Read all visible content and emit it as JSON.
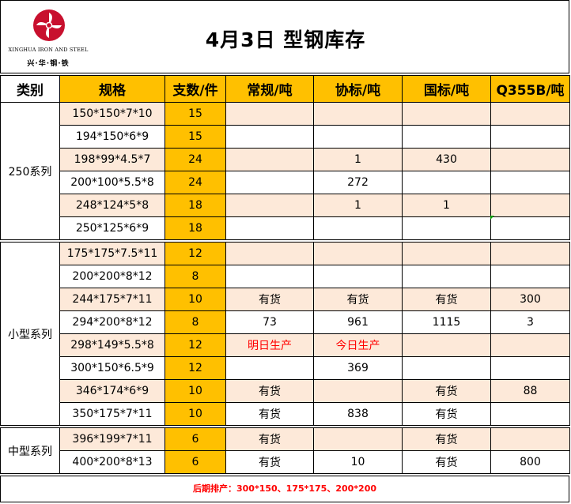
{
  "header": {
    "title": "4月3日  型钢库存",
    "logo_en": "XINGHUA IRON AND STEEL",
    "logo_cn": "兴·华·钢·铁",
    "logo_color": "#c8102e"
  },
  "columns": [
    "类别",
    "规格",
    "支数/件",
    "常规/吨",
    "协标/吨",
    "国标/吨",
    "Q355B/吨"
  ],
  "groups": [
    {
      "category": "250系列",
      "rows": [
        {
          "spec": "150*150*7*10",
          "count": "15",
          "regular": "",
          "assoc": "",
          "national": "",
          "q355b": ""
        },
        {
          "spec": "194*150*6*9",
          "count": "15",
          "regular": "",
          "assoc": "",
          "national": "",
          "q355b": ""
        },
        {
          "spec": "198*99*4.5*7",
          "count": "24",
          "regular": "",
          "assoc": "1",
          "national": "430",
          "q355b": ""
        },
        {
          "spec": "200*100*5.5*8",
          "count": "24",
          "regular": "",
          "assoc": "272",
          "national": "",
          "q355b": ""
        },
        {
          "spec": "248*124*5*8",
          "count": "18",
          "regular": "",
          "assoc": "1",
          "national": "1",
          "q355b": ""
        },
        {
          "spec": "250*125*6*9",
          "count": "18",
          "regular": "",
          "assoc": "",
          "national": "",
          "q355b": ""
        }
      ]
    },
    {
      "category": "小型系列",
      "rows": [
        {
          "spec": "175*175*7.5*11",
          "count": "12",
          "regular": "",
          "assoc": "",
          "national": "",
          "q355b": ""
        },
        {
          "spec": "200*200*8*12",
          "count": "8",
          "regular": "",
          "assoc": "",
          "national": "",
          "q355b": ""
        },
        {
          "spec": "244*175*7*11",
          "count": "10",
          "regular": "有货",
          "assoc": "有货",
          "national": "有货",
          "q355b": "300"
        },
        {
          "spec": "294*200*8*12",
          "count": "8",
          "regular": "73",
          "assoc": "961",
          "national": "1115",
          "q355b": "3"
        },
        {
          "spec": "298*149*5.5*8",
          "count": "12",
          "regular": "明日生产",
          "assoc": "今日生产",
          "national": "",
          "q355b": ""
        },
        {
          "spec": "300*150*6.5*9",
          "count": "12",
          "regular": "",
          "assoc": "369",
          "national": "",
          "q355b": ""
        },
        {
          "spec": "346*174*6*9",
          "count": "10",
          "regular": "有货",
          "assoc": "",
          "national": "有货",
          "q355b": "88"
        },
        {
          "spec": "350*175*7*11",
          "count": "10",
          "regular": "有货",
          "assoc": "838",
          "national": "有货",
          "q355b": ""
        }
      ]
    },
    {
      "category": "中型系列",
      "rows": [
        {
          "spec": "396*199*7*11",
          "count": "6",
          "regular": "有货",
          "assoc": "",
          "national": "有货",
          "q355b": ""
        },
        {
          "spec": "400*200*8*13",
          "count": "6",
          "regular": "有货",
          "assoc": "10",
          "national": "有货",
          "q355b": "800"
        }
      ]
    }
  ],
  "footer": "后期排产：300*150、175*175、200*200",
  "colors": {
    "header_orange": "#ffc000",
    "row_cream": "#fde9d9",
    "alert_red": "#ff0000"
  }
}
